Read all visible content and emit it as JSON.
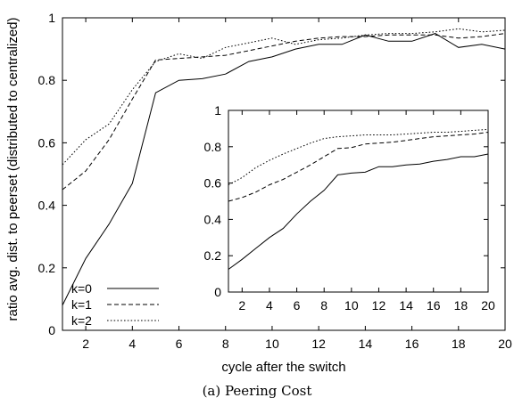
{
  "caption": "(a)  Peering Cost",
  "chart_data": [
    {
      "type": "line",
      "title": "",
      "xlabel": "cycle after the switch",
      "ylabel": "ratio avg. dist. to peerset (distributed to centralized)",
      "xlim": [
        1,
        20
      ],
      "ylim": [
        0,
        1
      ],
      "xticks": [
        2,
        4,
        6,
        8,
        10,
        12,
        14,
        16,
        18,
        20
      ],
      "yticks": [
        0,
        0.2,
        0.4,
        0.6,
        0.8,
        1
      ],
      "legend_position": "bottom-left",
      "x": [
        1,
        2,
        3,
        4,
        5,
        6,
        7,
        8,
        9,
        10,
        11,
        12,
        13,
        14,
        15,
        16,
        17,
        18,
        19,
        20
      ],
      "series": [
        {
          "name": "k=0",
          "style": "solid",
          "values": [
            0.08,
            0.23,
            0.34,
            0.47,
            0.76,
            0.8,
            0.805,
            0.82,
            0.86,
            0.875,
            0.9,
            0.915,
            0.915,
            0.945,
            0.925,
            0.925,
            0.95,
            0.905,
            0.915,
            0.9
          ]
        },
        {
          "name": "k=1",
          "style": "dashed",
          "values": [
            0.45,
            0.51,
            0.61,
            0.74,
            0.865,
            0.87,
            0.875,
            0.88,
            0.895,
            0.91,
            0.925,
            0.935,
            0.94,
            0.94,
            0.945,
            0.945,
            0.945,
            0.935,
            0.94,
            0.95
          ]
        },
        {
          "name": "k=2",
          "style": "dotted",
          "values": [
            0.53,
            0.61,
            0.66,
            0.77,
            0.86,
            0.885,
            0.87,
            0.905,
            0.92,
            0.935,
            0.915,
            0.93,
            0.935,
            0.945,
            0.95,
            0.95,
            0.955,
            0.965,
            0.955,
            0.96
          ]
        }
      ]
    },
    {
      "type": "line",
      "title": "",
      "xlabel": "",
      "ylabel": "",
      "xlim": [
        1,
        20
      ],
      "ylim": [
        0,
        1
      ],
      "xticks": [
        2,
        4,
        6,
        8,
        10,
        12,
        14,
        16,
        18,
        20
      ],
      "yticks": [
        0,
        0.2,
        0.4,
        0.6,
        0.8,
        1
      ],
      "x": [
        1,
        2,
        3,
        4,
        5,
        6,
        7,
        8,
        9,
        10,
        11,
        12,
        13,
        14,
        15,
        16,
        17,
        18,
        19,
        20
      ],
      "series": [
        {
          "name": "k=0",
          "style": "solid",
          "values": [
            0.125,
            0.18,
            0.24,
            0.3,
            0.35,
            0.43,
            0.5,
            0.56,
            0.645,
            0.655,
            0.66,
            0.69,
            0.69,
            0.7,
            0.705,
            0.72,
            0.73,
            0.745,
            0.745,
            0.76
          ]
        },
        {
          "name": "k=1",
          "style": "dashed",
          "values": [
            0.5,
            0.52,
            0.55,
            0.59,
            0.62,
            0.66,
            0.7,
            0.745,
            0.79,
            0.795,
            0.815,
            0.82,
            0.825,
            0.835,
            0.845,
            0.855,
            0.86,
            0.865,
            0.87,
            0.88
          ]
        },
        {
          "name": "k=2",
          "style": "dotted",
          "values": [
            0.59,
            0.63,
            0.685,
            0.725,
            0.76,
            0.79,
            0.82,
            0.845,
            0.855,
            0.86,
            0.865,
            0.865,
            0.865,
            0.87,
            0.875,
            0.88,
            0.88,
            0.885,
            0.89,
            0.895
          ]
        }
      ]
    }
  ]
}
